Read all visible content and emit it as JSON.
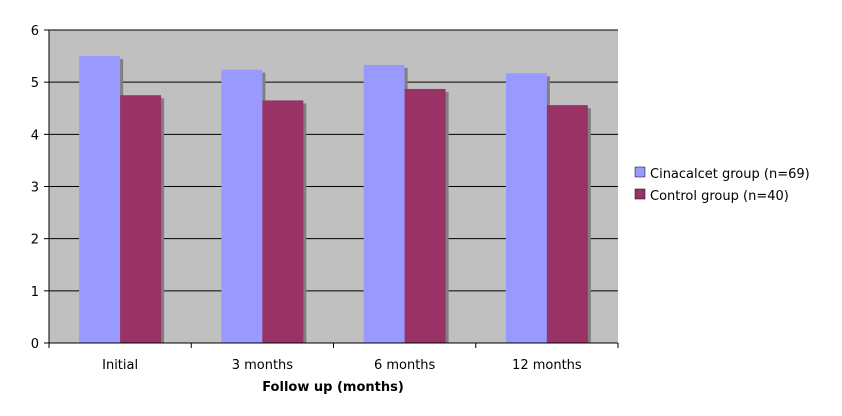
{
  "chart_data": {
    "type": "bar",
    "title": "",
    "xlabel": "Follow up (months)",
    "ylabel": "",
    "ylim": [
      0,
      6
    ],
    "yticks": [
      "0",
      "1",
      "2",
      "3",
      "4",
      "5",
      "6"
    ],
    "categories": [
      "Initial",
      "3 months",
      "6 months",
      "12 months"
    ],
    "series": [
      {
        "name": "Cinacalcet group (n=69)",
        "color": "#9999ff",
        "values": [
          5.5,
          5.24,
          5.33,
          5.17
        ]
      },
      {
        "name": "Control group (n=40)",
        "color": "#993366",
        "values": [
          4.75,
          4.65,
          4.87,
          4.56
        ]
      }
    ],
    "grid": true,
    "plot_background": "#c0c0c0",
    "legend_position": "right"
  }
}
